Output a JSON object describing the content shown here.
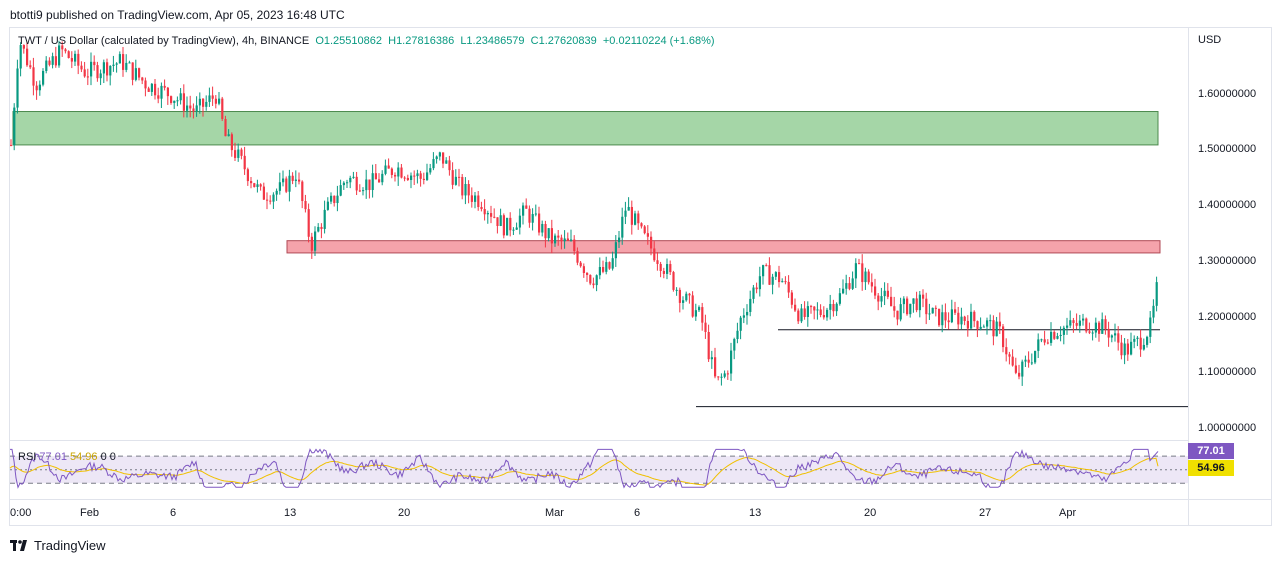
{
  "header": {
    "publish_line": "btotti9 published on TradingView.com, Apr 05, 2023 16:48 UTC"
  },
  "legend": {
    "symbol": "TWT / US Dollar (calculated by TradingView), 4h, BINANCE",
    "open": "O1.25510862",
    "high": "H1.27816386",
    "low": "L1.23486579",
    "close": "C1.27620839",
    "change": "+0.02110224 (+1.68%)"
  },
  "rsi": {
    "label": "RSI",
    "value": "77.01",
    "ma": "54.96",
    "extra1": "0",
    "extra2": "0",
    "value_color": "#7e57c2",
    "ma_color": "#f0e000"
  },
  "footer": {
    "brand": "TradingView"
  },
  "colors": {
    "up": "#089981",
    "down": "#f23645",
    "resistance_zone": "#a5d6a7",
    "resistance_border": "#4c8a4e",
    "support_zone": "#f5a3ab",
    "support_border": "#b04a55",
    "rsi_band": "#ede7f6"
  },
  "chart_data": {
    "type": "candlestick",
    "price_axis": {
      "unit": "USD",
      "labels": [
        "1.60000000",
        "1.50000000",
        "1.40000000",
        "1.30000000",
        "1.20000000",
        "1.10000000",
        "1.00000000"
      ],
      "ylim": [
        0.98,
        1.72
      ]
    },
    "x_axis": {
      "labels": [
        "0:00",
        "Feb",
        "6",
        "13",
        "20",
        "Mar",
        "6",
        "13",
        "20",
        "27",
        "Apr"
      ]
    },
    "zones": [
      {
        "kind": "resistance",
        "price_low": 1.51,
        "price_high": 1.57
      },
      {
        "kind": "support",
        "price_low": 1.316,
        "price_high": 1.338
      }
    ],
    "horizontal_lines": [
      1.178,
      1.04
    ],
    "price_path": [
      [
        0,
        1.51
      ],
      [
        8,
        1.7
      ],
      [
        25,
        1.62
      ],
      [
        50,
        1.68
      ],
      [
        75,
        1.64
      ],
      [
        110,
        1.66
      ],
      [
        135,
        1.62
      ],
      [
        160,
        1.6
      ],
      [
        185,
        1.57
      ],
      [
        205,
        1.6
      ],
      [
        215,
        1.52
      ],
      [
        230,
        1.48
      ],
      [
        250,
        1.42
      ],
      [
        270,
        1.43
      ],
      [
        285,
        1.46
      ],
      [
        300,
        1.33
      ],
      [
        315,
        1.39
      ],
      [
        335,
        1.45
      ],
      [
        360,
        1.44
      ],
      [
        385,
        1.47
      ],
      [
        410,
        1.45
      ],
      [
        430,
        1.49
      ],
      [
        450,
        1.43
      ],
      [
        470,
        1.41
      ],
      [
        495,
        1.36
      ],
      [
        515,
        1.39
      ],
      [
        540,
        1.34
      ],
      [
        560,
        1.33
      ],
      [
        580,
        1.27
      ],
      [
        600,
        1.29
      ],
      [
        615,
        1.4
      ],
      [
        630,
        1.35
      ],
      [
        650,
        1.3
      ],
      [
        670,
        1.24
      ],
      [
        690,
        1.2
      ],
      [
        705,
        1.08
      ],
      [
        715,
        1.1
      ],
      [
        730,
        1.2
      ],
      [
        750,
        1.28
      ],
      [
        770,
        1.27
      ],
      [
        790,
        1.2
      ],
      [
        810,
        1.21
      ],
      [
        830,
        1.24
      ],
      [
        845,
        1.29
      ],
      [
        865,
        1.25
      ],
      [
        885,
        1.21
      ],
      [
        905,
        1.23
      ],
      [
        925,
        1.2
      ],
      [
        950,
        1.2
      ],
      [
        975,
        1.19
      ],
      [
        990,
        1.17
      ],
      [
        1005,
        1.09
      ],
      [
        1020,
        1.13
      ],
      [
        1035,
        1.17
      ],
      [
        1050,
        1.18
      ],
      [
        1075,
        1.19
      ],
      [
        1095,
        1.18
      ],
      [
        1115,
        1.14
      ],
      [
        1130,
        1.16
      ],
      [
        1140,
        1.185
      ],
      [
        1148,
        1.276
      ]
    ],
    "rsi_current": 77.01,
    "rsi_ma_current": 54.96,
    "rsi_bands": [
      70,
      50,
      30
    ]
  }
}
